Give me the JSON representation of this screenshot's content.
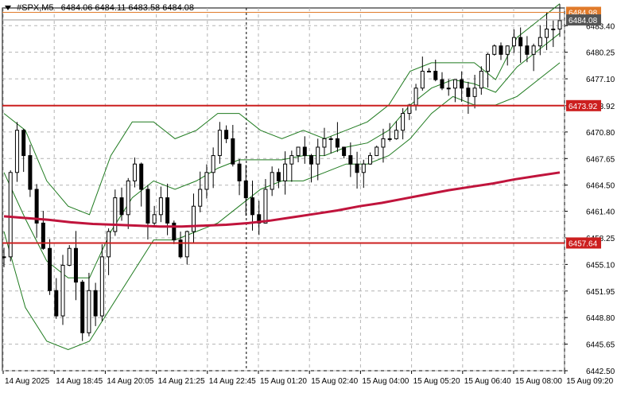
{
  "header": {
    "symbol": "#SPX,M5",
    "ohlc": "6484.06 6484.11 6483.58 6484.08"
  },
  "colors": {
    "candle_up": "#000000",
    "candle_down": "#000000",
    "bollinger": "#1e7a1e",
    "ma": "#c0143c",
    "level_line": "#cc1f1f",
    "current_line": "#e07a2a",
    "grid": "#b4b4b4"
  },
  "price_labels": {
    "upper_marker": "6484.98",
    "current": "6484.08",
    "resistance": "6473.92",
    "support": "6457.64"
  },
  "chart_data": {
    "type": "candlestick",
    "symbol": "#SPX",
    "timeframe": "M5",
    "y_ticks": [
      "6483.40",
      "6480.25",
      "6477.10",
      "6473.92",
      "6470.80",
      "6467.65",
      "6464.50",
      "6461.40",
      "6458.25",
      "6455.10",
      "6451.95",
      "6448.80",
      "6445.65",
      "6442.50"
    ],
    "x_ticks": [
      "14 Aug 2025",
      "14 Aug 18:45",
      "14 Aug 20:05",
      "14 Aug 21:25",
      "14 Aug 22:45",
      "15 Aug 01:20",
      "15 Aug 02:40",
      "15 Aug 04:00",
      "15 Aug 05:20",
      "15 Aug 06:40",
      "15 Aug 08:00",
      "15 Aug 09:20"
    ],
    "ylim": [
      6442.5,
      6485.5
    ],
    "horizontal_levels": [
      6484.98,
      6473.92,
      6457.64
    ],
    "current_price": 6484.08,
    "session_separator": "14 Aug 22:45",
    "indicators": [
      "Bollinger Bands",
      "Moving Average"
    ],
    "price_path": [
      6456,
      6466,
      6471,
      6468,
      6464,
      6460,
      6457,
      6452,
      6449,
      6455,
      6457,
      6453,
      6447,
      6452,
      6449,
      6456,
      6459,
      6463,
      6461,
      6465,
      6467,
      6464,
      6460,
      6461,
      6463,
      6460,
      6458,
      6456,
      6459,
      6462,
      6464,
      6466,
      6468,
      6471,
      6470,
      6467,
      6465,
      6463,
      6461,
      6460,
      6464,
      6466,
      6465,
      6467,
      6468,
      6469,
      6468,
      6467,
      6469,
      6470,
      6470,
      6469,
      6468,
      6467,
      6466,
      6467,
      6468,
      6469,
      6470,
      6470,
      6471,
      6473,
      6474,
      6476,
      6478,
      6478,
      6477,
      6476,
      6476,
      6477,
      6476,
      6475,
      6476,
      6478,
      6480,
      6481,
      6480,
      6481,
      6482,
      6481,
      6480,
      6481,
      6482,
      6483,
      6483,
      6484
    ],
    "ma_path": [
      6460.8,
      6460.6,
      6460.4,
      6460.1,
      6459.9,
      6459.8,
      6459.7,
      6459.6,
      6459.6,
      6459.7,
      6459.8,
      6460.0,
      6460.3,
      6460.7,
      6461.1,
      6461.5,
      6462.0,
      6462.4,
      6462.9,
      6463.4,
      6463.9,
      6464.3,
      6464.7,
      6465.2,
      6465.6,
      6466.0
    ],
    "bb_upper_path": [
      6473,
      6471,
      6465,
      6462,
      6461,
      6468,
      6472,
      6472,
      6470,
      6471,
      6473,
      6473,
      6471,
      6470,
      6471,
      6470,
      6471,
      6472,
      6474,
      6478,
      6479,
      6479,
      6479,
      6477,
      6482,
      6484,
      6486
    ],
    "bb_lower_path": [
      6459,
      6450,
      6446,
      6445,
      6446,
      6450,
      6454,
      6458,
      6458,
      6459,
      6460,
      6462,
      6464,
      6465,
      6465,
      6466,
      6467,
      6467,
      6468,
      6470,
      6473,
      6475,
      6474,
      6474,
      6475,
      6477,
      6479
    ]
  }
}
